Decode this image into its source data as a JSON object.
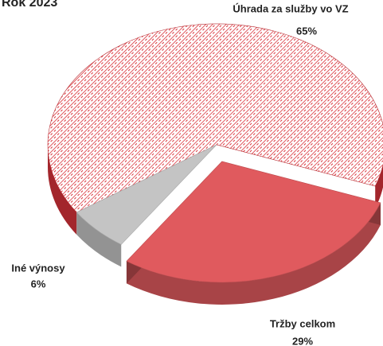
{
  "chart_data": {
    "type": "pie",
    "title": "Rok 2023",
    "categories": [
      "Úhrada za služby vo VZ",
      "Tržby celkom",
      "Iné výnosy"
    ],
    "values": [
      65,
      29,
      6
    ],
    "value_labels": [
      "65%",
      "29%",
      "6%"
    ],
    "colors": [
      "#d9323a",
      "#e05a5e",
      "#c4c4c4"
    ],
    "patterned": [
      true,
      false,
      false
    ],
    "exploded": [
      false,
      true,
      false
    ]
  }
}
